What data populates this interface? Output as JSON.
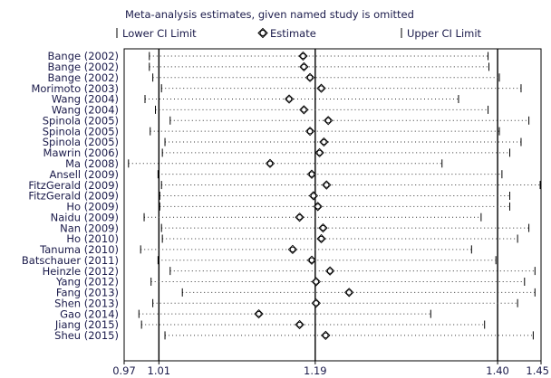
{
  "chart_data": {
    "type": "scatter",
    "title": "Meta-analysis estimates, given named study is omitted",
    "legend": {
      "placement": "top",
      "items": [
        {
          "symbol": "bar",
          "label": "Lower CI Limit"
        },
        {
          "symbol": "circle",
          "label": "Estimate"
        },
        {
          "symbol": "bar",
          "label": "Upper CI Limit"
        }
      ]
    },
    "x_ticks": [
      "0.97",
      "1.01",
      "1.19",
      "1.40",
      "1.45"
    ],
    "x_tick_values": [
      0.97,
      1.01,
      1.19,
      1.4,
      1.45
    ],
    "xlim": [
      0.97,
      1.45
    ],
    "reference_lines": [
      1.01,
      1.19,
      1.4
    ],
    "studies": [
      "Bange (2002)",
      "Bange (2002)",
      "Bange (2002)",
      "Morimoto (2003)",
      "Wang (2004)",
      "Wang (2004)",
      "Spinola (2005)",
      "Spinola (2005)",
      "Spinola (2005)",
      "Mawrin (2006)",
      "Ma (2008)",
      "Ansell (2009)",
      "FitzGerald (2009)",
      "FitzGerald (2009)",
      "Ho (2009)",
      "Naidu (2009)",
      "Nan (2009)",
      "Ho (2010)",
      "Tanuma (2010)",
      "Batschauer (2011)",
      "Heinzle (2012)",
      "Yang (2012)",
      "Fang (2013)",
      "Shen (2013)",
      "Gao (2014)",
      "Jiang (2015)",
      "Sheu (2015)"
    ],
    "series": [
      {
        "name": "Estimate",
        "values": [
          1.176,
          1.177,
          1.184,
          1.197,
          1.16,
          1.177,
          1.205,
          1.184,
          1.2,
          1.195,
          1.138,
          1.186,
          1.203,
          1.188,
          1.193,
          1.172,
          1.199,
          1.197,
          1.164,
          1.186,
          1.207,
          1.191,
          1.229,
          1.191,
          1.125,
          1.172,
          1.202
        ]
      },
      {
        "name": "Lower CI Limit",
        "values": [
          0.999,
          0.999,
          1.003,
          1.013,
          0.994,
          1.006,
          1.023,
          1.0,
          1.017,
          1.014,
          0.975,
          1.009,
          1.013,
          1.011,
          1.011,
          0.993,
          1.013,
          1.014,
          0.989,
          1.009,
          1.023,
          1.001,
          1.037,
          1.003,
          0.987,
          0.99,
          1.017
        ]
      },
      {
        "name": "Upper CI Limit",
        "values": [
          1.389,
          1.39,
          1.402,
          1.427,
          1.355,
          1.389,
          1.436,
          1.402,
          1.427,
          1.414,
          1.336,
          1.405,
          1.449,
          1.414,
          1.414,
          1.381,
          1.436,
          1.423,
          1.37,
          1.398,
          1.443,
          1.431,
          1.443,
          1.423,
          1.323,
          1.385,
          1.441
        ]
      }
    ]
  }
}
